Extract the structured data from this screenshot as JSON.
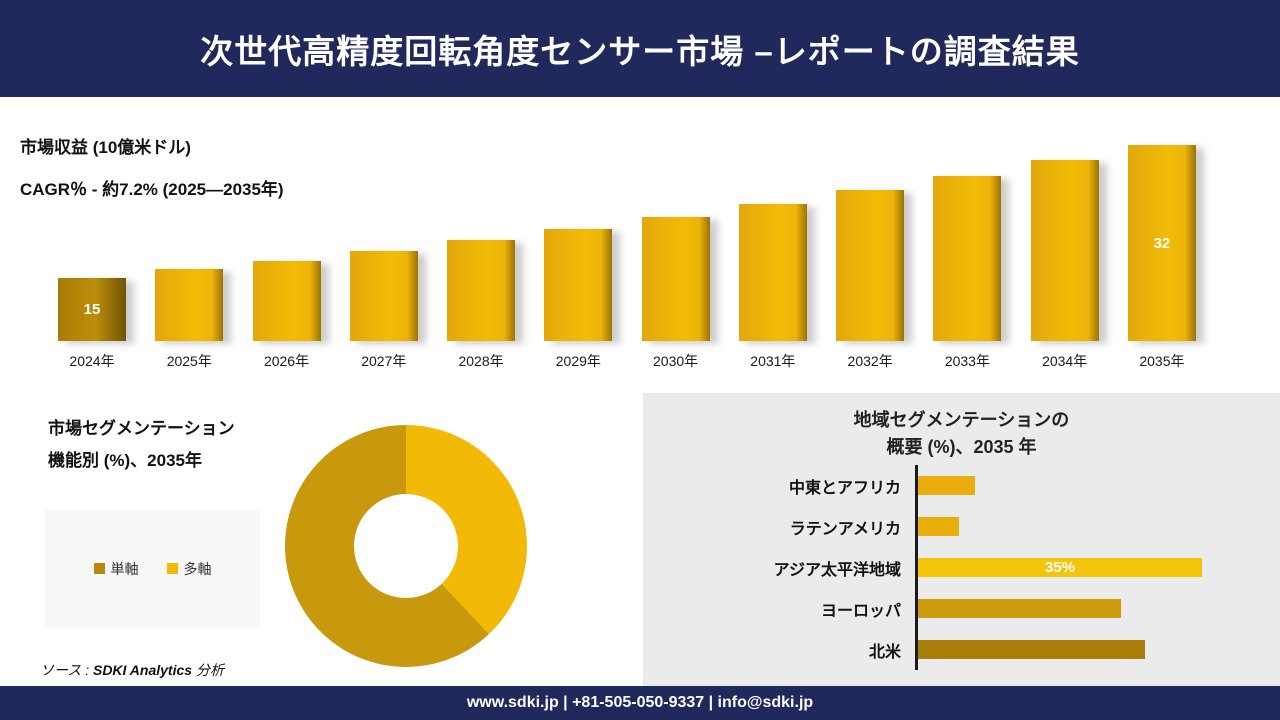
{
  "palette": {
    "navy": "#21285C",
    "gold": "#EDB10C",
    "gold_bright": "#F4C50A",
    "gold_dark": "#A87D08",
    "panel_gray": "#EBEBEB"
  },
  "header": {
    "title": "次世代高精度回転角度センサー市場 –レポートの調査結果"
  },
  "revenue": {
    "metric_label": "市場収益 (10億米ドル)",
    "cagr_label": "CAGR％ - 約7.2% (2025―2035年)"
  },
  "segmentation": {
    "title_line1": "市場セグメンテーション",
    "title_line2": "機能別 (%)、2035年",
    "legend": [
      {
        "label": "単軸",
        "color": "#B8870B"
      },
      {
        "label": "多軸",
        "color": "#F2BA06"
      }
    ]
  },
  "regional": {
    "title_line1": "地域セグメンテーションの",
    "title_line2": "概要 (%)、2035 年"
  },
  "source": {
    "prefix": "ソース : ",
    "brand": "SDKI Analytics",
    "suffix": " 分析"
  },
  "footer": {
    "text": "www.sdki.jp | +81-505-050-9337 | info@sdki.jp"
  },
  "chart_data": [
    {
      "type": "bar",
      "title": "市場収益 (10億米ドル)",
      "subtitle": "CAGR％ - 約7.2% (2025―2035年)",
      "categories": [
        "2024年",
        "2025年",
        "2026年",
        "2027年",
        "2028年",
        "2029年",
        "2030年",
        "2031年",
        "2032年",
        "2033年",
        "2034年",
        "2035年"
      ],
      "values": [
        15,
        16.1,
        17.2,
        18.5,
        19.8,
        21.2,
        22.8,
        24.4,
        26.2,
        28.1,
        30.1,
        32
      ],
      "value_labels": {
        "0": "15",
        "11": "32"
      },
      "xlabel": "",
      "ylabel": "市場収益 (10億米ドル)",
      "grid": false,
      "legend_position": "none"
    },
    {
      "type": "pie",
      "donut": true,
      "title": "市場セグメンテーション 機能別 (%)、2035年",
      "slices": [
        {
          "label": "多軸",
          "value": 38,
          "color": "#F2BA06"
        },
        {
          "label": "単軸",
          "value": 62,
          "color": "#C9990D"
        }
      ],
      "legend_position": "left"
    },
    {
      "type": "bar",
      "orientation": "horizontal",
      "title": "地域セグメンテーションの 概要 (%)、2035 年",
      "categories": [
        "中東とアフリカ",
        "ラテンアメリカ",
        "アジア太平洋地域",
        "ヨーロッパ",
        "北米"
      ],
      "values": [
        7,
        5,
        35,
        25,
        28
      ],
      "bar_labels": {
        "2": "35%"
      },
      "colors": [
        "#E9AE0D",
        "#E9AE0D",
        "#F4C50A",
        "#CC9A0C",
        "#A87D08"
      ],
      "grid": false
    }
  ]
}
